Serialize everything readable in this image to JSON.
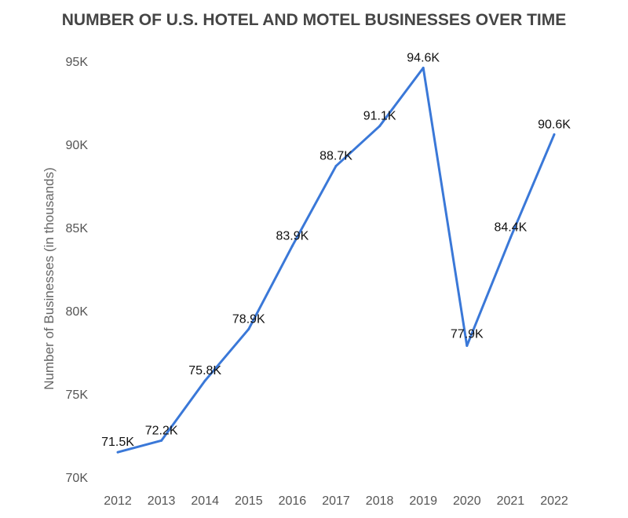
{
  "chart_data": {
    "type": "line",
    "title": "NUMBER OF U.S. HOTEL AND MOTEL BUSINESSES OVER TIME",
    "xlabel": "",
    "ylabel": "Number of Businesses (in thousands)",
    "categories": [
      "2012",
      "2013",
      "2014",
      "2015",
      "2016",
      "2017",
      "2018",
      "2019",
      "2020",
      "2021",
      "2022"
    ],
    "series": [
      {
        "name": "Businesses",
        "values": [
          71.5,
          72.2,
          75.8,
          78.9,
          83.9,
          88.7,
          91.1,
          94.6,
          77.9,
          84.4,
          90.6
        ]
      }
    ],
    "data_labels": [
      "71.5K",
      "72.2K",
      "75.8K",
      "78.9K",
      "83.9K",
      "88.7K",
      "91.1K",
      "94.6K",
      "77.9K",
      "84.4K",
      "90.6K"
    ],
    "ylim": [
      70,
      95
    ],
    "yticks": [
      70,
      75,
      80,
      85,
      90,
      95
    ],
    "ytick_labels": [
      "70K",
      "75K",
      "80K",
      "85K",
      "90K",
      "95K"
    ],
    "grid": false,
    "legend": "none",
    "line_color": "#3a78d8"
  }
}
